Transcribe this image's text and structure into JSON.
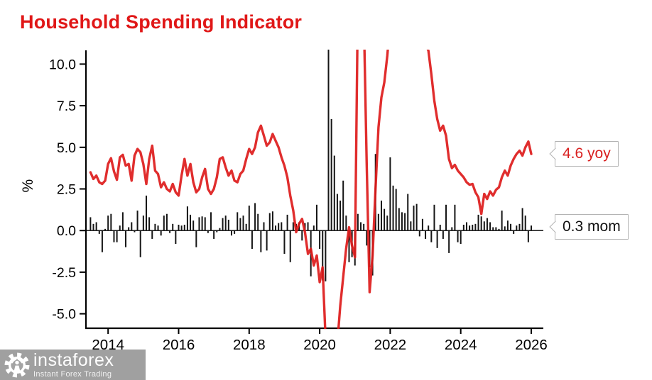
{
  "title": "Household Spending Indicator",
  "callouts": {
    "yoy": "4.6 yoy",
    "mom": "0.3 mom"
  },
  "watermark": {
    "brand": "instaforex",
    "tagline": "Instant Forex Trading"
  },
  "colors": {
    "title_red": "#e01717",
    "line_red": "#dd1b1b",
    "bar_black": "#151515",
    "axis_black": "#000000",
    "callout_border": "#b3b3b3",
    "watermark_gray": "#989898"
  },
  "chart_data": {
    "type": "bar+line combo (monthly)",
    "title": "Household Spending Indicator",
    "xlabel": "",
    "ylabel": "%",
    "x_start_month": "2013-07",
    "x_frequency": "monthly",
    "x_tick_years": [
      2014,
      2016,
      2018,
      2020,
      2022,
      2024,
      2026
    ],
    "x_tick_labels": [
      "2014",
      "2016",
      "2018",
      "2020",
      "2022",
      "2024",
      "2026"
    ],
    "y_tick_values": [
      10,
      7.5,
      5,
      2.5,
      0,
      -2.5,
      -5
    ],
    "y_tick_labels": [
      "10.0",
      "7.5",
      "5.0",
      "2.5",
      "0.0",
      "-2.5",
      "-5.0"
    ],
    "ylim_visible": [
      -5.9,
      10.8
    ],
    "grid": false,
    "legend": "none",
    "annotations": [
      {
        "text": "4.6 yoy",
        "series": "yoy",
        "color": "#d92020"
      },
      {
        "text": "0.3 mom",
        "series": "mom",
        "color": "#111111"
      }
    ],
    "series": [
      {
        "name": "yoy",
        "type": "line",
        "color": "#dd1b1b",
        "values": [
          3.5,
          3.1,
          3.3,
          2.9,
          2.8,
          3.0,
          4.0,
          4.35,
          3.55,
          3.05,
          4.4,
          4.55,
          3.9,
          4.0,
          3.0,
          4.5,
          4.9,
          4.7,
          4.0,
          2.8,
          4.3,
          5.1,
          3.6,
          3.4,
          2.6,
          2.9,
          2.5,
          2.35,
          2.8,
          2.3,
          2.1,
          3.3,
          4.3,
          3.3,
          4.0,
          2.9,
          2.3,
          2.5,
          3.2,
          3.7,
          2.5,
          2.2,
          2.5,
          3.2,
          4.3,
          4.4,
          3.8,
          3.3,
          3.6,
          3.0,
          2.9,
          3.4,
          3.6,
          4.3,
          4.9,
          4.6,
          5.0,
          5.9,
          6.3,
          5.7,
          5.1,
          5.3,
          5.8,
          5.4,
          5.0,
          4.4,
          3.9,
          3.2,
          2.1,
          1.2,
          -0.1,
          0.4,
          0.7,
          -0.1,
          -1.4,
          -1.1,
          -2.1,
          -1.5,
          -3.1,
          -2.2,
          -6.5,
          -10.0,
          -9.0,
          -9.5,
          -6.8,
          -4.5,
          -2.8,
          -1.1,
          0.2,
          -0.9,
          -1.6,
          14.0,
          15.0,
          13.0,
          4.0,
          -3.7,
          -1.5,
          2.5,
          6.2,
          8.0,
          8.9,
          10.5,
          12.5,
          13.5,
          14.0,
          14.0,
          13.5,
          13.0,
          13.0,
          13.5,
          13.0,
          12.5,
          12.0,
          11.5,
          11.2,
          10.8,
          9.4,
          7.8,
          6.7,
          6.0,
          6.3,
          5.7,
          4.3,
          3.75,
          3.95,
          3.6,
          3.4,
          3.2,
          2.9,
          2.75,
          2.8,
          2.3,
          2.0,
          1.0,
          2.2,
          1.9,
          2.35,
          2.1,
          2.45,
          2.6,
          3.2,
          3.6,
          3.3,
          3.9,
          4.3,
          4.6,
          4.8,
          4.5,
          5.0,
          5.35,
          4.6
        ]
      },
      {
        "name": "mom",
        "type": "bar",
        "color": "#151515",
        "values": [
          0.8,
          0.4,
          0.5,
          -0.2,
          -1.3,
          0.1,
          0.9,
          1.0,
          -0.7,
          -0.7,
          0.3,
          1.1,
          -1.0,
          0.2,
          0.5,
          -0.1,
          1.2,
          -1.6,
          0.9,
          2.1,
          0.8,
          -0.5,
          0.4,
          0.3,
          -0.3,
          0.9,
          1.0,
          -0.15,
          0.4,
          -0.8,
          0.35,
          0.3,
          0.35,
          1.45,
          0.95,
          0.6,
          -1.0,
          0.8,
          0.85,
          0.8,
          -0.15,
          1.1,
          -0.5,
          -0.1,
          0.15,
          0.75,
          0.9,
          0.65,
          -0.3,
          -0.2,
          1.1,
          0.75,
          0.9,
          0.4,
          1.5,
          -1.1,
          1.65,
          1.0,
          -1.3,
          0.5,
          -1.2,
          1.05,
          1.15,
          0.3,
          0.45,
          0.5,
          -1.4,
          0.95,
          -1.9,
          0.5,
          0.4,
          0.5,
          -0.6,
          0.45,
          0.5,
          -2.75,
          0.3,
          1.55,
          -1.1,
          -3.0,
          -3.05,
          10.9,
          6.7,
          4.5,
          2.2,
          1.8,
          3.0,
          0.9,
          -1.9,
          -1.6,
          -2.1,
          1.0,
          0.5,
          0.4,
          -0.9,
          -2.2,
          -2.7,
          4.6,
          1.0,
          1.8,
          1.3,
          0.9,
          4.4,
          2.7,
          2.5,
          1.35,
          1.1,
          1.05,
          2.2,
          0.55,
          1.5,
          1.6,
          -0.35,
          0.7,
          -0.5,
          0.3,
          -0.7,
          1.55,
          -1.05,
          0.35,
          -0.5,
          1.55,
          -1.35,
          0.2,
          1.55,
          -0.7,
          -0.8,
          0.35,
          0.5,
          0.3,
          0.35,
          0.4,
          0.95,
          0.85,
          0.55,
          0.75,
          0.5,
          0.2,
          0.2,
          0.1,
          1.2,
          0.25,
          0.6,
          0.4,
          -0.2,
          0.3,
          0.4,
          1.35,
          0.9,
          -0.7,
          0.3
        ]
      }
    ]
  }
}
